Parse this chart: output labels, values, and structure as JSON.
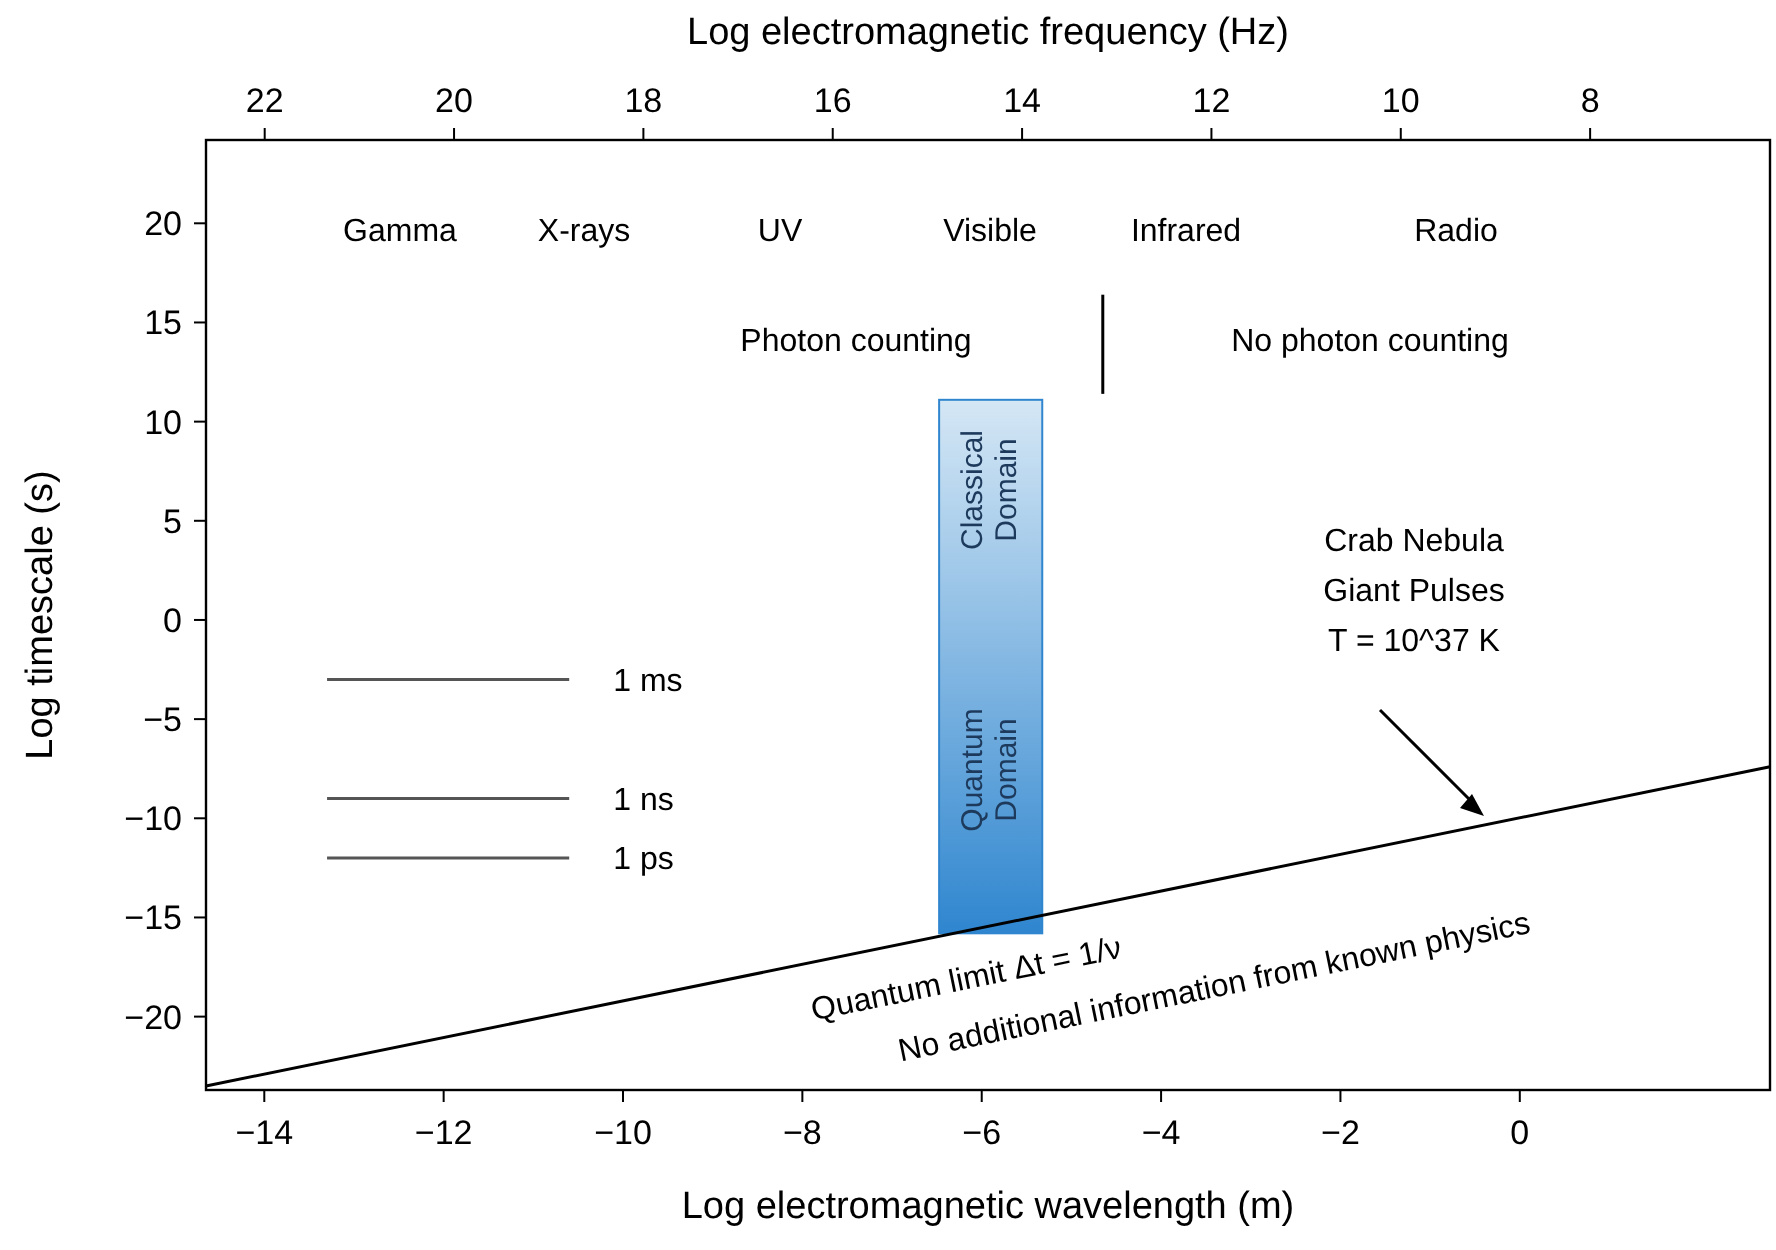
{
  "chart_data": {
    "type": "line",
    "xlabel": "Log electromagnetic wavelength (m)",
    "x2label": "Log electromagnetic frequency (Hz)",
    "ylabel": "Log timescale (s)",
    "xlim": [
      -14.65,
      2.79
    ],
    "xticks": [
      -14,
      -12,
      -10,
      -8,
      -6,
      -4,
      -2,
      0
    ],
    "x2lim": [
      22.62,
      6.1
    ],
    "x2ticks": [
      22,
      20,
      18,
      16,
      14,
      12,
      10,
      8
    ],
    "ylim": [
      -23.7,
      24.2
    ],
    "yticks": [
      -20,
      -15,
      -10,
      -5,
      0,
      5,
      10,
      15,
      20
    ],
    "grid": false,
    "series": [
      {
        "x": [
          -14.65,
          2.79
        ],
        "values": [
          -23.5,
          -7.4
        ],
        "color": "#000000"
      },
      {
        "x": [
          -4.65,
          -4.65
        ],
        "values": [
          16.4,
          11.4
        ],
        "color": "#000000"
      },
      {
        "name": "1 ms",
        "x": [
          -13.3,
          -10.6
        ],
        "values": [
          -3,
          -3
        ],
        "color": "#555555"
      },
      {
        "name": "1 ns",
        "x": [
          -13.3,
          -10.6
        ],
        "values": [
          -9,
          -9
        ],
        "color": "#555555"
      },
      {
        "name": "1 ps",
        "x": [
          -13.3,
          -10.6
        ],
        "values": [
          -12,
          -12
        ],
        "color": "#555555"
      },
      {
        "type": "bar",
        "x": [
          -5.9
        ],
        "base": [
          -15.8
        ],
        "values": [
          26.9
        ],
        "color": "#2f86cf"
      }
    ],
    "annotations": [
      "Gamma",
      "X-rays",
      "UV",
      "Visible",
      "Infrared",
      "Radio",
      "Photon counting",
      "No photon counting",
      "Classical Domain",
      "Quantum Domain",
      "Crab Nebula\nGiant Pulses\nT = 10^37 K",
      "Quantum limit Δt = 1/ν",
      "No additional information from known physics"
    ]
  }
}
